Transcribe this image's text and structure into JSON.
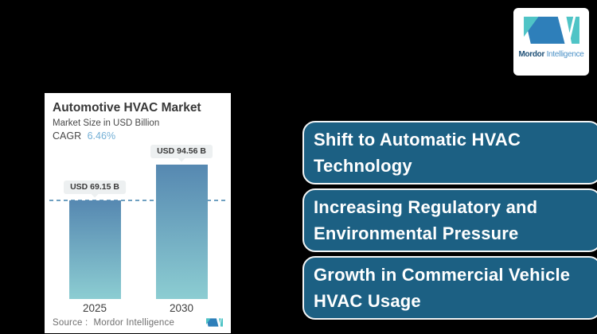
{
  "brand": {
    "name_bold": "Mordor",
    "name_light": "Intelligence"
  },
  "chart_card": {
    "title": "Automotive HVAC Market",
    "subtitle": "Market Size in USD Billion",
    "cagr_label": "CAGR",
    "cagr_value": "6.46%",
    "source_label": "Source :",
    "source_value": "Mordor Intelligence"
  },
  "chart_data": {
    "type": "bar",
    "title": "Automotive HVAC Market",
    "ylabel": "Market Size in USD Billion",
    "unit": "USD Billion",
    "categories": [
      "2025",
      "2030"
    ],
    "values": [
      69.15,
      94.56
    ],
    "bar_labels": [
      "USD 69.15 B",
      "USD 94.56 B"
    ],
    "cagr_percent": 6.46,
    "ylim": [
      0,
      105
    ],
    "grid": false,
    "reference_line_value": 69.15,
    "bar_color_top": "#5688b1",
    "bar_color_bottom": "#8ccdd2",
    "reference_line_color": "#6fa0c1"
  },
  "drivers": [
    {
      "lines": [
        "Shift to Automatic HVAC",
        "Technology"
      ]
    },
    {
      "lines": [
        "Increasing Regulatory and",
        "Environmental Pressure"
      ]
    },
    {
      "lines": [
        "Growth in Commercial Vehicle",
        "HVAC Usage"
      ]
    }
  ],
  "colors": {
    "background": "#000000",
    "card_bg": "#ffffff",
    "driver_bg": "#1c6083",
    "cagr_accent": "#74b0d6",
    "logo_blue": "#2e7fba",
    "logo_teal": "#4fc4c6",
    "brand_text_dark": "#1d4f76",
    "brand_text_light": "#4e93c8"
  }
}
